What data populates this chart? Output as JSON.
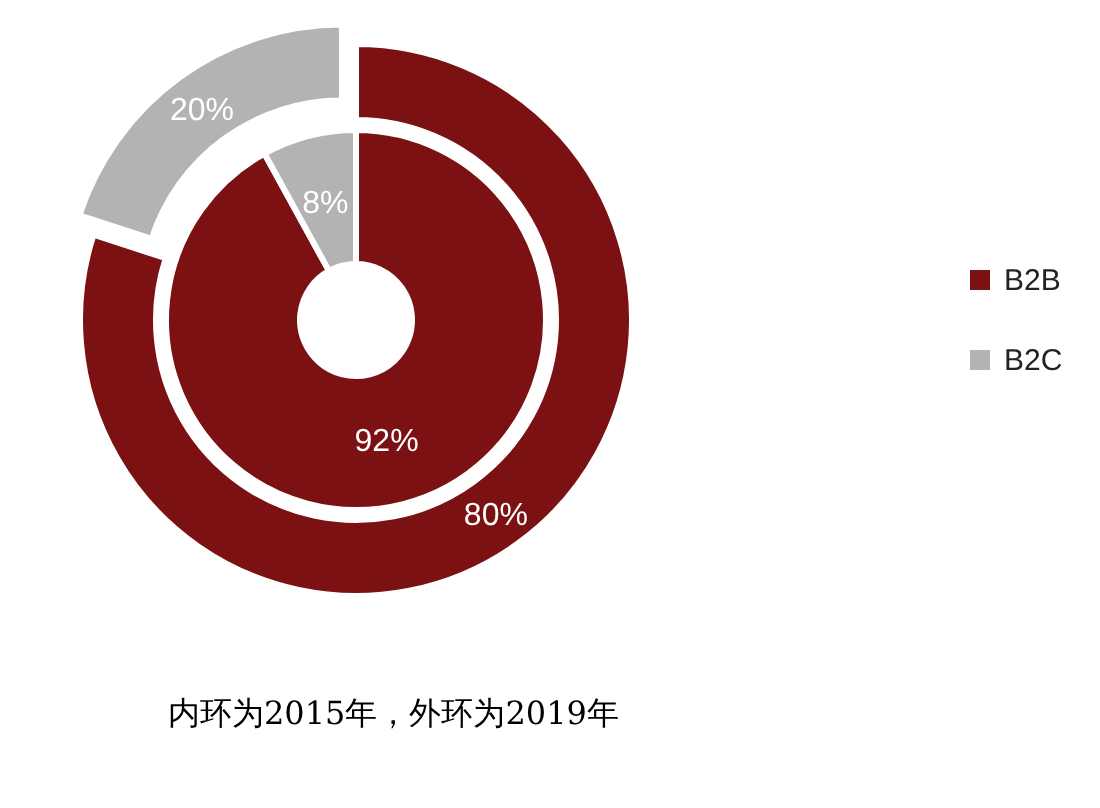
{
  "chart_data": {
    "type": "donut",
    "categories": [
      "B2B",
      "B2C"
    ],
    "colors": [
      "#7b1113",
      "#b3b3b3"
    ],
    "series": [
      {
        "values": [
          92,
          8
        ],
        "value_labels": [
          "92%",
          "8%"
        ]
      },
      {
        "values": [
          80,
          20
        ],
        "value_labels": [
          "80%",
          "20%"
        ]
      }
    ],
    "legend": "right",
    "annotations": [
      "内环为2015年，外环为2019年"
    ]
  }
}
